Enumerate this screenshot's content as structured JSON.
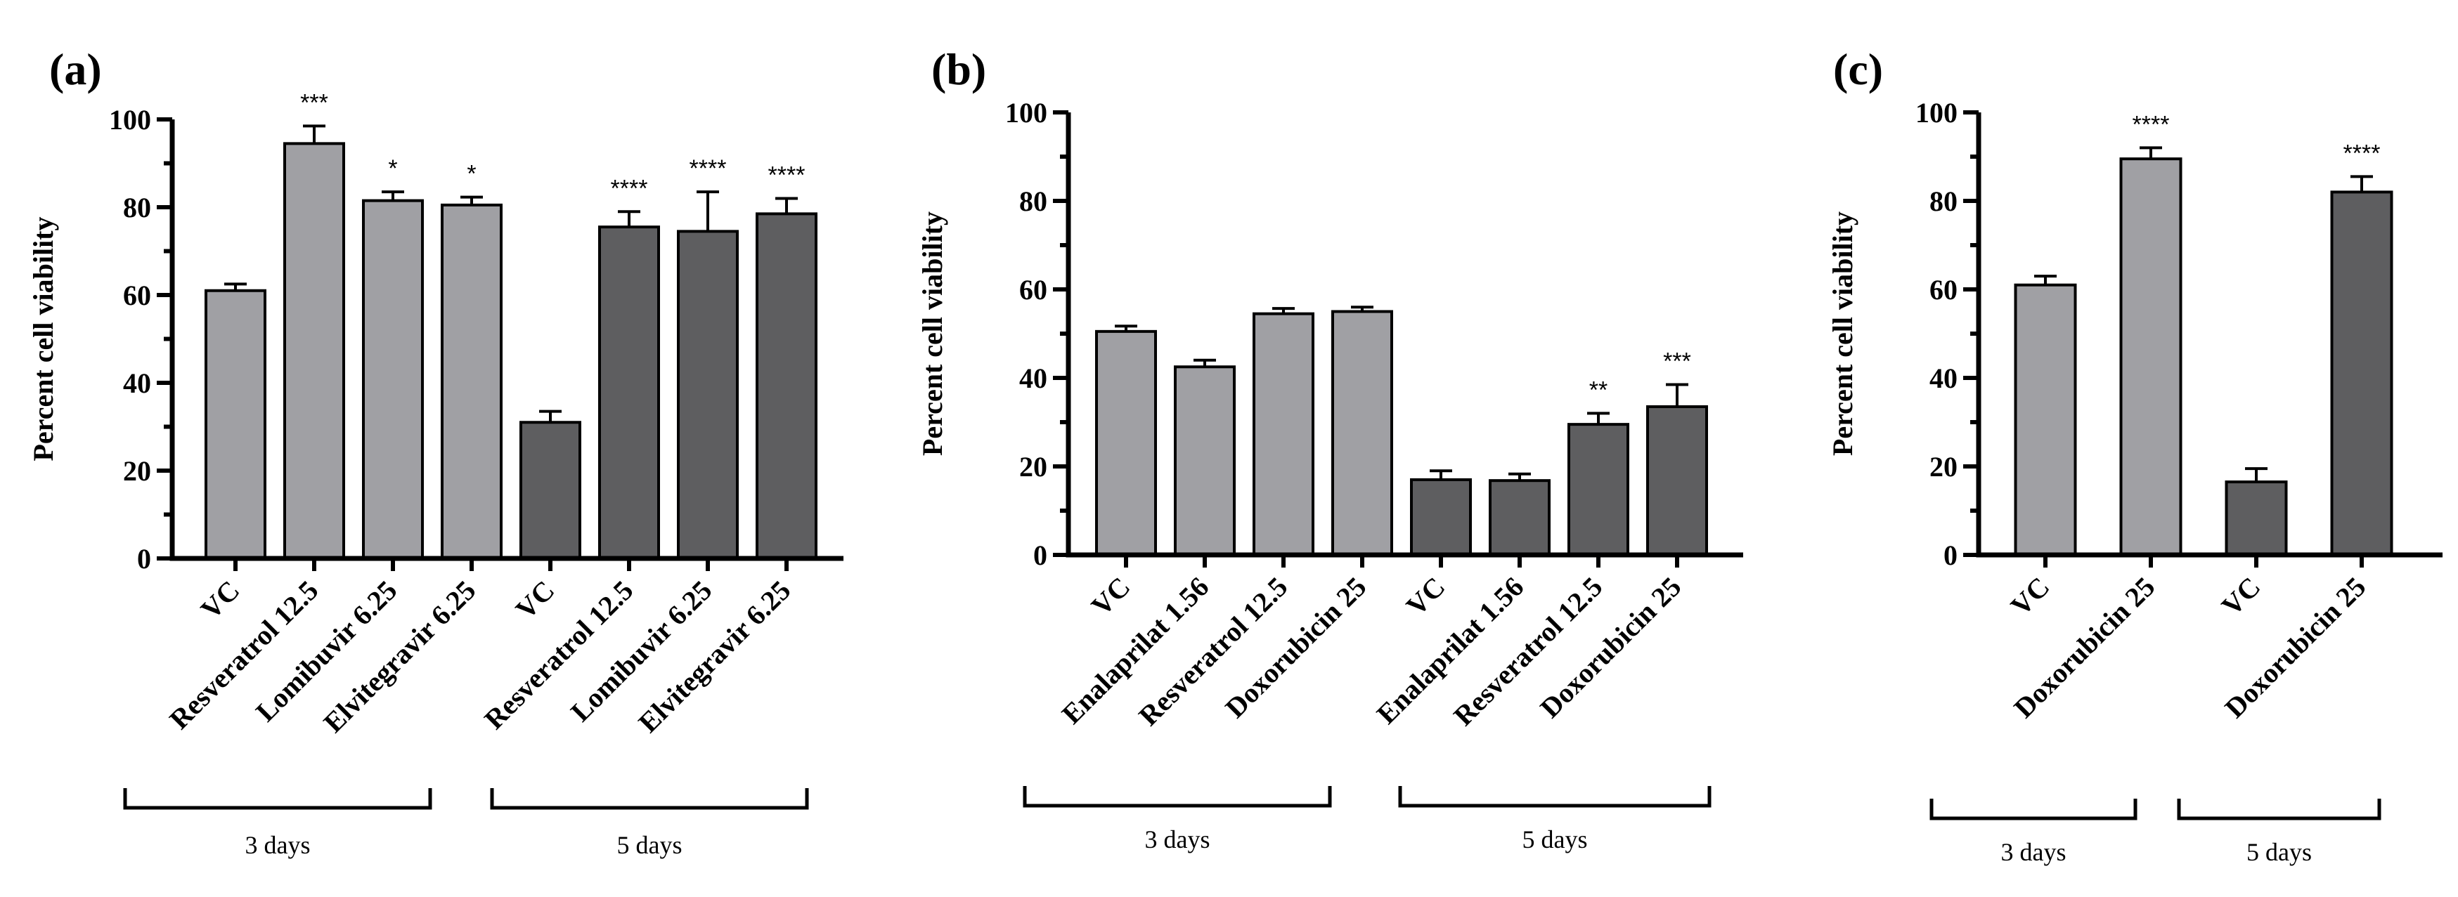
{
  "colors": {
    "light_bar": "#a0a0a4",
    "dark_bar": "#5e5e60",
    "axis": "#000000"
  },
  "chart_data": [
    {
      "type": "bar",
      "panel": "(a)",
      "ylabel": "Percent  cell viability",
      "ylim": [
        0,
        100
      ],
      "yticks": [
        "0",
        "20",
        "40",
        "60",
        "80",
        "100"
      ],
      "groups": [
        "3 days",
        "5 days"
      ],
      "categories": [
        "VC",
        "Resveratrol 12.5",
        "Lomibuvir 6.25",
        "Elvitegravir 6.25",
        "VC",
        "Resveratrol 12.5",
        "Lomibuvir 6.25",
        "Elvitegravir 6.25"
      ],
      "values": [
        61,
        94.5,
        81.5,
        80.5,
        31,
        75.5,
        74.5,
        78.5
      ],
      "errors": [
        1.5,
        4,
        2,
        1.8,
        2.5,
        3.5,
        9,
        3.5
      ],
      "significance": [
        "",
        "***",
        "*",
        "*",
        "",
        "****",
        "****",
        "****"
      ],
      "series_group": [
        0,
        0,
        0,
        0,
        1,
        1,
        1,
        1
      ]
    },
    {
      "type": "bar",
      "panel": "(b)",
      "ylabel": "Percent  cell viability",
      "ylim": [
        0,
        100
      ],
      "yticks": [
        "0",
        "20",
        "40",
        "60",
        "80",
        "100"
      ],
      "groups": [
        "3 days",
        "5 days"
      ],
      "categories": [
        "VC",
        "Enalaprilat 1.56",
        "Resveratrol 12.5",
        "Doxorubicin 25",
        "VC",
        "Enalaprilat 1.56",
        "Resveratrol 12.5",
        "Doxorubicin 25"
      ],
      "values": [
        50.5,
        42.5,
        54.5,
        55,
        17,
        16.8,
        29.5,
        33.5
      ],
      "errors": [
        1.2,
        1.5,
        1.2,
        1,
        2,
        1.5,
        2.5,
        5
      ],
      "significance": [
        "",
        "",
        "",
        "",
        "",
        "",
        "**",
        "***"
      ],
      "series_group": [
        0,
        0,
        0,
        0,
        1,
        1,
        1,
        1
      ]
    },
    {
      "type": "bar",
      "panel": "(c)",
      "ylabel": "Percent  cell viability",
      "ylim": [
        0,
        100
      ],
      "yticks": [
        "0",
        "20",
        "40",
        "60",
        "80",
        "100"
      ],
      "groups": [
        "3 days",
        "5 days"
      ],
      "categories": [
        "VC",
        "Doxorubicin 25",
        "VC",
        "Doxorubicin 25"
      ],
      "values": [
        61,
        89.5,
        16.5,
        82
      ],
      "errors": [
        2,
        2.5,
        3,
        3.5
      ],
      "significance": [
        "",
        "****",
        "",
        "****"
      ],
      "series_group": [
        0,
        0,
        1,
        1
      ]
    }
  ]
}
